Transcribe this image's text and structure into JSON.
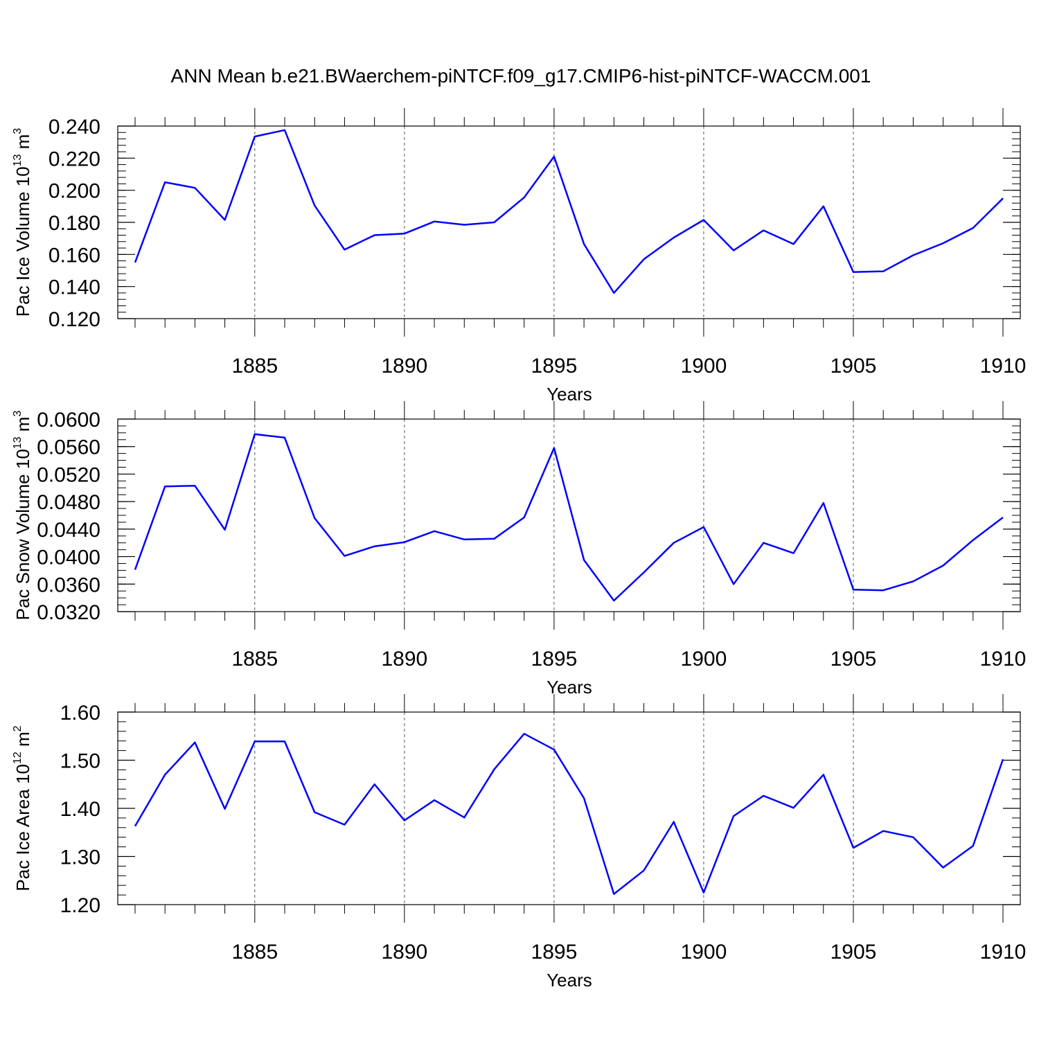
{
  "figure": {
    "title": "ANN Mean b.e21.BWaerchem-piNTCF.f09_g17.CMIP6-hist-piNTCF-WACCM.001",
    "line_color": "#0000ff",
    "grid_color": "#555555"
  },
  "chart_data": [
    {
      "type": "line",
      "xlabel": "Years",
      "ylabel": {
        "prefix": "Pac Ice Volume 10",
        "exponent": "13",
        "unit": " m",
        "unit_exponent": "3"
      },
      "xlim": [
        1881,
        1910
      ],
      "ylim": [
        0.12,
        0.24
      ],
      "x_major_ticks": [
        1885,
        1890,
        1895,
        1900,
        1905,
        1910
      ],
      "y_major_ticks": [
        0.12,
        0.14,
        0.16,
        0.18,
        0.2,
        0.22,
        0.24
      ],
      "y_tick_labels": [
        "0.120",
        "0.140",
        "0.160",
        "0.180",
        "0.200",
        "0.220",
        "0.240"
      ],
      "y_minor_step": 0.004,
      "grid": "vertical dashed at major x ticks",
      "x": [
        1881,
        1882,
        1883,
        1884,
        1885,
        1886,
        1887,
        1888,
        1889,
        1890,
        1891,
        1892,
        1893,
        1894,
        1895,
        1896,
        1897,
        1898,
        1899,
        1900,
        1901,
        1902,
        1903,
        1904,
        1905,
        1906,
        1907,
        1908,
        1909,
        1910
      ],
      "values": [
        0.155,
        0.205,
        0.2015,
        0.1815,
        0.2335,
        0.2375,
        0.1905,
        0.163,
        0.172,
        0.173,
        0.1805,
        0.1785,
        0.18,
        0.1955,
        0.221,
        0.1665,
        0.136,
        0.157,
        0.1705,
        0.1815,
        0.1625,
        0.175,
        0.1665,
        0.19,
        0.149,
        0.1495,
        0.1595,
        0.167,
        0.1765,
        0.195
      ]
    },
    {
      "type": "line",
      "xlabel": "Years",
      "ylabel": {
        "prefix": "Pac Snow Volume 10",
        "exponent": "13",
        "unit": " m",
        "unit_exponent": "3"
      },
      "xlim": [
        1881,
        1910
      ],
      "ylim": [
        0.032,
        0.06
      ],
      "x_major_ticks": [
        1885,
        1890,
        1895,
        1900,
        1905,
        1910
      ],
      "y_major_ticks": [
        0.032,
        0.036,
        0.04,
        0.044,
        0.048,
        0.052,
        0.056,
        0.06
      ],
      "y_tick_labels": [
        "0.0320",
        "0.0360",
        "0.0400",
        "0.0440",
        "0.0480",
        "0.0520",
        "0.0560",
        "0.0600"
      ],
      "y_minor_step": 0.001,
      "grid": "vertical dashed at major x ticks",
      "x": [
        1881,
        1882,
        1883,
        1884,
        1885,
        1886,
        1887,
        1888,
        1889,
        1890,
        1891,
        1892,
        1893,
        1894,
        1895,
        1896,
        1897,
        1898,
        1899,
        1900,
        1901,
        1902,
        1903,
        1904,
        1905,
        1906,
        1907,
        1908,
        1909,
        1910
      ],
      "values": [
        0.0381,
        0.0502,
        0.0503,
        0.0439,
        0.0578,
        0.0573,
        0.0456,
        0.0401,
        0.0415,
        0.0421,
        0.0437,
        0.0425,
        0.0426,
        0.0457,
        0.0558,
        0.0395,
        0.0336,
        0.0377,
        0.042,
        0.0443,
        0.036,
        0.042,
        0.0405,
        0.0478,
        0.0352,
        0.0351,
        0.0364,
        0.0387,
        0.0424,
        0.0457
      ]
    },
    {
      "type": "line",
      "xlabel": "Years",
      "ylabel": {
        "prefix": "Pac Ice Area 10",
        "exponent": "12",
        "unit": " m",
        "unit_exponent": "2"
      },
      "xlim": [
        1881,
        1910
      ],
      "ylim": [
        1.2,
        1.6
      ],
      "x_major_ticks": [
        1885,
        1890,
        1895,
        1900,
        1905,
        1910
      ],
      "y_major_ticks": [
        1.2,
        1.3,
        1.4,
        1.5,
        1.6
      ],
      "y_tick_labels": [
        "1.20",
        "1.30",
        "1.40",
        "1.50",
        "1.60"
      ],
      "y_minor_step": 0.02,
      "grid": "vertical dashed at major x ticks",
      "x": [
        1881,
        1882,
        1883,
        1884,
        1885,
        1886,
        1887,
        1888,
        1889,
        1890,
        1891,
        1892,
        1893,
        1894,
        1895,
        1896,
        1897,
        1898,
        1899,
        1900,
        1901,
        1902,
        1903,
        1904,
        1905,
        1906,
        1907,
        1908,
        1909,
        1910
      ],
      "values": [
        1.363,
        1.47,
        1.537,
        1.399,
        1.539,
        1.539,
        1.392,
        1.366,
        1.45,
        1.375,
        1.417,
        1.381,
        1.481,
        1.555,
        1.522,
        1.421,
        1.222,
        1.271,
        1.372,
        1.225,
        1.384,
        1.426,
        1.401,
        1.47,
        1.318,
        1.353,
        1.34,
        1.277,
        1.322,
        1.502
      ]
    }
  ]
}
